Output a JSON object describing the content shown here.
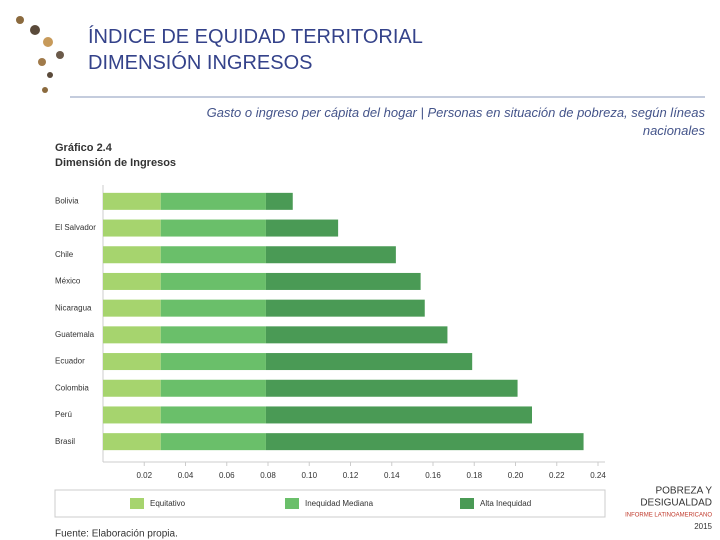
{
  "header": {
    "title_line1": "ÍNDICE DE EQUIDAD TERRITORIAL",
    "title_line2": "DIMENSIÓN INGRESOS",
    "subtitle": "Gasto o ingreso per cápita del hogar | Personas en situación de pobreza, según líneas nacionales"
  },
  "chart_data": {
    "type": "bar",
    "orientation": "horizontal",
    "stacked": true,
    "title": "Gráfico 2.4",
    "subtitle": "Dimensión de Ingresos",
    "categories": [
      "Bolivia",
      "El Salvador",
      "Chile",
      "México",
      "Nicaragua",
      "Guatemala",
      "Ecuador",
      "Colombia",
      "Perú",
      "Brasil"
    ],
    "series": [
      {
        "name": "Equitativo",
        "color": "#a6d46e",
        "values": [
          0.028,
          0.028,
          0.028,
          0.028,
          0.028,
          0.028,
          0.028,
          0.028,
          0.028,
          0.028
        ]
      },
      {
        "name": "Inequidad Mediana",
        "color": "#6abf6a",
        "values": [
          0.051,
          0.051,
          0.051,
          0.051,
          0.051,
          0.051,
          0.051,
          0.051,
          0.051,
          0.051
        ]
      },
      {
        "name": "Alta Inequidad",
        "color": "#4a9a55",
        "values": [
          0.013,
          0.035,
          0.063,
          0.075,
          0.077,
          0.088,
          0.1,
          0.122,
          0.129,
          0.154
        ]
      }
    ],
    "xlim": [
      0,
      0.24
    ],
    "xticks": [
      0.02,
      0.04,
      0.06,
      0.08,
      {
        "value": 0.1,
        "label": "0.10"
      },
      0.12,
      0.14,
      0.16,
      0.18,
      {
        "value": 0.2,
        "label": "0.20"
      },
      0.22,
      0.24
    ],
    "legend": "bottom",
    "source": "Fuente: Elaboración propia."
  },
  "logo": {
    "line1": "POBREZA Y",
    "line2": "DESIGUALDAD",
    "line3": "INFORME LATINOAMERICANO",
    "line4": "2015"
  }
}
